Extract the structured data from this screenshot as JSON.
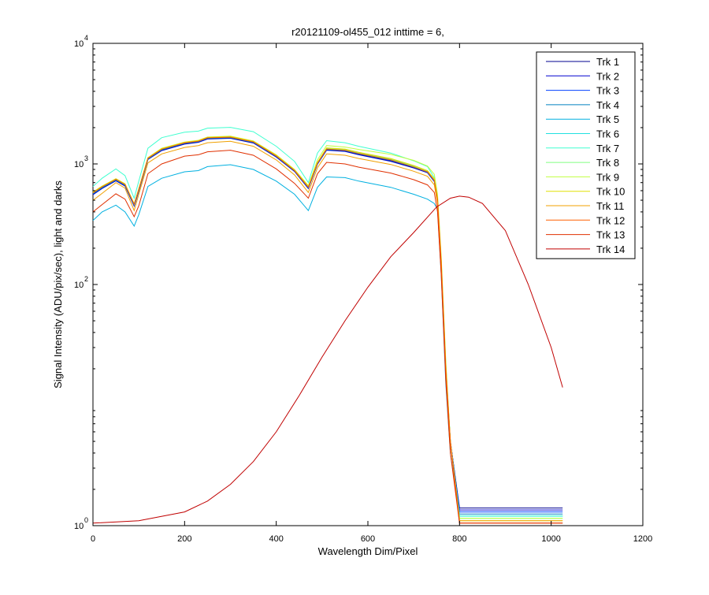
{
  "chart_data": {
    "type": "line",
    "title": "r20121109-ol455_012 inttime = 6,",
    "xlabel": "Wavelength Dim/Pixel",
    "ylabel": "Signal Intensity (ADU/pix/sec), light and darks",
    "xlim": [
      0,
      1200
    ],
    "ylim": [
      1,
      10000
    ],
    "y_scale": "log",
    "x_ticks": [
      0,
      200,
      400,
      600,
      800,
      1000,
      1200
    ],
    "y_ticks": [
      {
        "value": 1,
        "base": "10",
        "exp": "0"
      },
      {
        "value": 100,
        "base": "10",
        "exp": "2"
      },
      {
        "value": 1000,
        "base": "10",
        "exp": "3"
      },
      {
        "value": 10000,
        "base": "10",
        "exp": "4"
      }
    ],
    "grid": false,
    "legend_position": "top-right",
    "series": [
      {
        "name": "Trk 1",
        "color": "#00008f",
        "x": [
          0,
          20,
          50,
          70,
          90,
          100,
          120,
          150,
          200,
          230,
          250,
          300,
          350,
          400,
          440,
          470,
          490,
          510,
          550,
          580,
          650,
          700,
          730,
          745,
          752,
          760,
          770,
          780,
          800,
          1025
        ],
        "y": [
          560,
          630,
          730,
          660,
          450,
          600,
          1100,
          1300,
          1470,
          1520,
          1620,
          1640,
          1500,
          1150,
          870,
          630,
          1000,
          1310,
          1280,
          1200,
          1060,
          930,
          850,
          720,
          500,
          150,
          20,
          5,
          1.4,
          1.4
        ]
      },
      {
        "name": "Trk 2",
        "color": "#0000d0",
        "x": [
          0,
          20,
          50,
          70,
          90,
          100,
          120,
          150,
          200,
          230,
          250,
          300,
          350,
          400,
          440,
          470,
          490,
          510,
          550,
          580,
          650,
          700,
          730,
          745,
          752,
          760,
          770,
          780,
          800,
          1025
        ],
        "y": [
          555,
          625,
          725,
          655,
          447,
          595,
          1090,
          1290,
          1460,
          1510,
          1610,
          1630,
          1490,
          1140,
          865,
          625,
          995,
          1300,
          1270,
          1190,
          1050,
          925,
          845,
          715,
          495,
          148,
          19,
          5,
          1.35,
          1.35
        ]
      },
      {
        "name": "Trk 3",
        "color": "#0040ff",
        "x": [
          0,
          20,
          50,
          70,
          90,
          100,
          120,
          150,
          200,
          230,
          250,
          300,
          350,
          400,
          440,
          470,
          490,
          510,
          550,
          580,
          650,
          700,
          730,
          745,
          752,
          760,
          770,
          780,
          800,
          1025
        ],
        "y": [
          570,
          640,
          740,
          670,
          460,
          610,
          1110,
          1320,
          1490,
          1540,
          1640,
          1660,
          1520,
          1160,
          880,
          640,
          1010,
          1330,
          1300,
          1220,
          1080,
          945,
          860,
          730,
          505,
          152,
          20,
          5,
          1.3,
          1.3
        ]
      },
      {
        "name": "Trk 4",
        "color": "#0080c0",
        "x": [
          0,
          20,
          50,
          70,
          90,
          100,
          120,
          150,
          200,
          230,
          250,
          300,
          350,
          400,
          440,
          470,
          490,
          510,
          550,
          580,
          650,
          700,
          730,
          745,
          752,
          760,
          770,
          780,
          800,
          1025
        ],
        "y": [
          565,
          635,
          735,
          665,
          455,
          605,
          1100,
          1310,
          1480,
          1530,
          1630,
          1650,
          1510,
          1155,
          875,
          635,
          1005,
          1320,
          1290,
          1210,
          1070,
          940,
          855,
          725,
          500,
          150,
          20,
          5,
          1.25,
          1.25
        ]
      },
      {
        "name": "Trk 5",
        "color": "#00b0e0",
        "x": [
          0,
          20,
          50,
          70,
          90,
          100,
          120,
          150,
          200,
          230,
          250,
          300,
          350,
          400,
          440,
          470,
          490,
          510,
          550,
          580,
          650,
          700,
          730,
          745,
          752,
          760,
          770,
          780,
          800,
          1025
        ],
        "y": [
          340,
          400,
          455,
          400,
          305,
          380,
          650,
          760,
          860,
          880,
          950,
          985,
          900,
          720,
          560,
          410,
          640,
          780,
          770,
          720,
          640,
          560,
          510,
          470,
          420,
          120,
          15,
          4,
          1.2,
          1.2
        ]
      },
      {
        "name": "Trk 6",
        "color": "#20e0e0",
        "x": [
          0,
          20,
          50,
          70,
          90,
          100,
          120,
          150,
          200,
          230,
          250,
          300,
          350,
          400,
          440,
          470,
          490,
          510,
          550,
          580,
          650,
          700,
          730,
          745,
          752,
          760,
          770,
          780,
          800,
          1025
        ],
        "y": [
          575,
          645,
          745,
          675,
          462,
          615,
          1120,
          1330,
          1500,
          1550,
          1650,
          1670,
          1530,
          1170,
          885,
          645,
          1020,
          1340,
          1310,
          1230,
          1090,
          950,
          865,
          735,
          510,
          155,
          21,
          5,
          1.2,
          1.2
        ]
      },
      {
        "name": "Trk 7",
        "color": "#40ffd0",
        "x": [
          0,
          20,
          50,
          70,
          90,
          100,
          120,
          150,
          200,
          230,
          250,
          300,
          350,
          400,
          440,
          470,
          490,
          510,
          550,
          580,
          650,
          700,
          730,
          745,
          752,
          760,
          770,
          780,
          800,
          1025
        ],
        "y": [
          650,
          760,
          910,
          800,
          520,
          720,
          1350,
          1650,
          1830,
          1870,
          1980,
          2010,
          1850,
          1400,
          1050,
          700,
          1230,
          1560,
          1500,
          1400,
          1230,
          1060,
          950,
          770,
          530,
          160,
          22,
          5,
          1.2,
          1.2
        ]
      },
      {
        "name": "Trk 8",
        "color": "#80ff80",
        "x": [
          0,
          20,
          50,
          70,
          90,
          100,
          120,
          150,
          200,
          230,
          250,
          300,
          350,
          400,
          440,
          470,
          490,
          510,
          550,
          580,
          650,
          700,
          730,
          745,
          752,
          760,
          770,
          780,
          800,
          1025
        ],
        "y": [
          580,
          650,
          750,
          680,
          465,
          620,
          1125,
          1340,
          1510,
          1560,
          1660,
          1690,
          1540,
          1180,
          890,
          650,
          1025,
          1350,
          1320,
          1240,
          1100,
          960,
          870,
          740,
          515,
          156,
          21,
          5,
          1.15,
          1.15
        ]
      },
      {
        "name": "Trk 9",
        "color": "#c0ff40",
        "x": [
          0,
          20,
          50,
          70,
          90,
          100,
          120,
          150,
          200,
          230,
          250,
          300,
          350,
          400,
          440,
          470,
          490,
          510,
          550,
          580,
          650,
          700,
          730,
          745,
          752,
          760,
          770,
          780,
          800,
          1025
        ],
        "y": [
          585,
          655,
          755,
          685,
          468,
          625,
          1130,
          1350,
          1520,
          1570,
          1670,
          1700,
          1550,
          1190,
          900,
          660,
          1080,
          1420,
          1380,
          1320,
          1200,
          1070,
          960,
          820,
          560,
          170,
          23,
          5,
          1.15,
          1.15
        ]
      },
      {
        "name": "Trk 10",
        "color": "#e0e000",
        "x": [
          0,
          20,
          50,
          70,
          90,
          100,
          120,
          150,
          200,
          230,
          250,
          300,
          350,
          400,
          440,
          470,
          490,
          510,
          550,
          580,
          650,
          700,
          730,
          745,
          752,
          760,
          770,
          780,
          800,
          1025
        ],
        "y": [
          580,
          650,
          750,
          680,
          465,
          620,
          1125,
          1340,
          1510,
          1560,
          1660,
          1690,
          1540,
          1180,
          890,
          655,
          1030,
          1360,
          1330,
          1250,
          1110,
          970,
          880,
          750,
          520,
          158,
          21,
          5,
          1.1,
          1.1
        ]
      },
      {
        "name": "Trk 11",
        "color": "#f0a000",
        "x": [
          0,
          20,
          50,
          70,
          90,
          100,
          120,
          150,
          200,
          230,
          250,
          300,
          350,
          400,
          440,
          470,
          490,
          510,
          550,
          580,
          650,
          700,
          730,
          745,
          752,
          760,
          770,
          780,
          800,
          1025
        ],
        "y": [
          500,
          570,
          700,
          630,
          410,
          560,
          1020,
          1210,
          1370,
          1420,
          1500,
          1540,
          1400,
          1080,
          810,
          580,
          930,
          1210,
          1180,
          1110,
          990,
          870,
          790,
          670,
          470,
          140,
          19,
          5,
          1.1,
          1.1
        ]
      },
      {
        "name": "Trk 12",
        "color": "#ff6000",
        "x": [
          0,
          20,
          50,
          70,
          90,
          100,
          120,
          150,
          200,
          230,
          250,
          300,
          350,
          400,
          440,
          470,
          490,
          510,
          550,
          580,
          650,
          700,
          730,
          745,
          752,
          760,
          770,
          780,
          800,
          1025
        ],
        "y": [
          575,
          645,
          745,
          675,
          462,
          615,
          1115,
          1325,
          1495,
          1545,
          1645,
          1665,
          1525,
          1165,
          880,
          640,
          1015,
          1330,
          1300,
          1220,
          1080,
          945,
          860,
          730,
          505,
          152,
          20,
          5,
          1.05,
          1.05
        ]
      },
      {
        "name": "Trk 13",
        "color": "#e03000",
        "x": [
          0,
          20,
          50,
          70,
          90,
          100,
          120,
          150,
          200,
          230,
          250,
          300,
          350,
          400,
          440,
          470,
          490,
          510,
          550,
          580,
          650,
          700,
          730,
          745,
          752,
          760,
          770,
          780,
          800,
          1025
        ],
        "y": [
          400,
          460,
          565,
          510,
          365,
          450,
          830,
          1000,
          1160,
          1190,
          1260,
          1300,
          1180,
          910,
          690,
          520,
          830,
          1030,
          1000,
          940,
          840,
          740,
          670,
          580,
          400,
          120,
          16,
          4,
          1.05,
          1.05
        ]
      },
      {
        "name": "Trk 14",
        "color": "#c00000",
        "x": [
          0,
          100,
          200,
          250,
          300,
          350,
          400,
          450,
          500,
          550,
          600,
          650,
          700,
          750,
          780,
          800,
          820,
          850,
          900,
          950,
          1000,
          1025
        ],
        "y": [
          1.05,
          1.1,
          1.3,
          1.6,
          2.2,
          3.4,
          6,
          12,
          25,
          50,
          95,
          170,
          270,
          440,
          520,
          540,
          530,
          470,
          280,
          100,
          30,
          14
        ]
      }
    ]
  }
}
